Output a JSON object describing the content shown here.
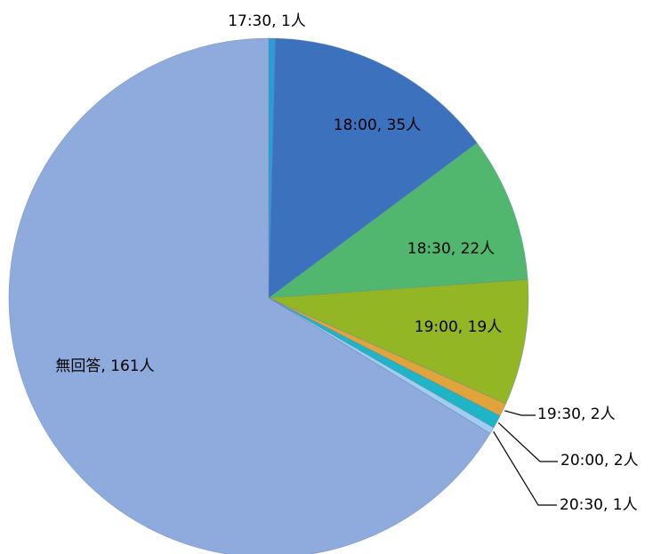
{
  "chart_data": {
    "type": "pie",
    "title": "",
    "slices": [
      {
        "label": "17:30, 1人",
        "category": "17:30",
        "value": 1,
        "color": "#2E9BD6"
      },
      {
        "label": "18:00, 35人",
        "category": "18:00",
        "value": 35,
        "color": "#3C72BD"
      },
      {
        "label": "18:30, 22人",
        "category": "18:30",
        "value": 22,
        "color": "#52B76E"
      },
      {
        "label": "19:00, 19人",
        "category": "19:00",
        "value": 19,
        "color": "#92B624"
      },
      {
        "label": "19:30, 2人",
        "category": "19:30",
        "value": 2,
        "color": "#E0A43A"
      },
      {
        "label": "20:00, 2人",
        "category": "20:00",
        "value": 2,
        "color": "#1FB5C6"
      },
      {
        "label": "20:30, 1人",
        "category": "20:30",
        "value": 1,
        "color": "#A3CDEF"
      },
      {
        "label": "無回答, 161人",
        "category": "無回答",
        "value": 161,
        "color": "#8FAADC"
      }
    ],
    "start_angle_deg": 0,
    "direction": "clockwise",
    "legend": "none"
  }
}
